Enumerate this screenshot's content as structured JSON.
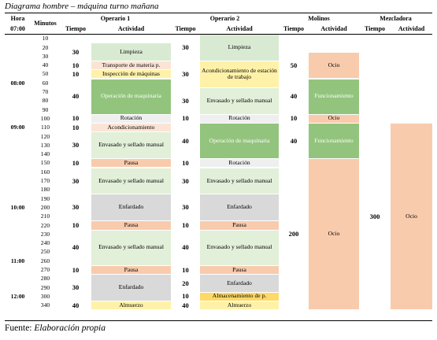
{
  "caption": "Diagrama hombre – máquina turno mañana",
  "source": {
    "label": "Fuente:",
    "value": "Elaboración propia"
  },
  "colors": {
    "limpieza": "#d9ead3",
    "white": "#ffffff",
    "transporte": "#fbe4d5",
    "inspeccion": "#fff2a8",
    "operacion": "#93c47d",
    "rotacion": "#efefef",
    "acondicionamiento": "#fbe4d5",
    "envasado": "#e2efd9",
    "pausa": "#f8cbad",
    "enfardado": "#d9d9d9",
    "almacenamiento": "#ffd966",
    "almuerzo": "#fff2a8",
    "ocio": "#f8cbad",
    "funcionamiento": "#93c47d",
    "header": "#ffffff"
  },
  "headers": {
    "hora": "Hora",
    "hora_start": "07:00",
    "minutos": "Minutos",
    "operario1": "Operario 1",
    "operario2": "Operario 2",
    "molinos": "Molinos",
    "mezcladora": "Mezcladora",
    "tiempo": "Tiempo",
    "actividad": "Actividad"
  },
  "hours": [
    "08:00",
    "09:00",
    "10:00",
    "11:00",
    "12:00"
  ],
  "minutes": [
    "10",
    "20",
    "30",
    "40",
    "50",
    "60",
    "70",
    "80",
    "90",
    "100",
    "110",
    "120",
    "130",
    "140",
    "150",
    "160",
    "170",
    "180",
    "190",
    "200",
    "210",
    "220",
    "230",
    "240",
    "250",
    "260",
    "270",
    "280",
    "290",
    "300",
    "340"
  ],
  "op1": [
    {
      "tiempo": "",
      "actividad": ""
    },
    {
      "tiempo": "30",
      "actividad": "Limpieza"
    },
    {
      "tiempo": "10",
      "actividad": "Transporte de materia p."
    },
    {
      "tiempo": "10",
      "actividad": "Inspección de máquinas"
    },
    {
      "tiempo": "40",
      "actividad": "Operación de maquinaria"
    },
    {
      "tiempo": "10",
      "actividad": "Rotación"
    },
    {
      "tiempo": "10",
      "actividad": "Acondicionamiento"
    },
    {
      "tiempo": "30",
      "actividad": "Envasado y sellado manual"
    },
    {
      "tiempo": "10",
      "actividad": "Pausa"
    },
    {
      "tiempo": "30",
      "actividad": "Envasado y sellado manual"
    },
    {
      "tiempo": "30",
      "actividad": "Enfardado"
    },
    {
      "tiempo": "10",
      "actividad": "Pausa"
    },
    {
      "tiempo": "40",
      "actividad": "Envasado y sellado manual"
    },
    {
      "tiempo": "10",
      "actividad": "Pausa"
    },
    {
      "tiempo": "30",
      "actividad": "Enfardado"
    },
    {
      "tiempo": "40",
      "actividad": "Almuerzo"
    }
  ],
  "op2": [
    {
      "tiempo": "30",
      "actividad": "Limpieza"
    },
    {
      "tiempo": "30",
      "actividad": "Acondicionamiento de estación de trabajo"
    },
    {
      "tiempo": "30",
      "actividad": "Envasado y sellado manual"
    },
    {
      "tiempo": "10",
      "actividad": "Rotación"
    },
    {
      "tiempo": "40",
      "actividad": "Operación de maquinaria"
    },
    {
      "tiempo": "10",
      "actividad": "Rotación"
    },
    {
      "tiempo": "30",
      "actividad": "Envasado y sellado manual"
    },
    {
      "tiempo": "30",
      "actividad": "Enfardado"
    },
    {
      "tiempo": "10",
      "actividad": "Pausa"
    },
    {
      "tiempo": "40",
      "actividad": "Envasado y sellado manual"
    },
    {
      "tiempo": "10",
      "actividad": "Pausa"
    },
    {
      "tiempo": "20",
      "actividad": "Enfardado"
    },
    {
      "tiempo": "10",
      "actividad": "Almacenamiento de p."
    },
    {
      "tiempo": "40",
      "actividad": "Almuerzo"
    }
  ],
  "molinos": [
    {
      "tiempo": "",
      "actividad": ""
    },
    {
      "tiempo": "50",
      "actividad": "Ocio"
    },
    {
      "tiempo": "40",
      "actividad": "Funcionamiento"
    },
    {
      "tiempo": "10",
      "actividad": "Ocio"
    },
    {
      "tiempo": "40",
      "actividad": "Funcionamiento"
    },
    {
      "tiempo": "200",
      "actividad": "Ocio"
    }
  ],
  "mezcladora": [
    {
      "tiempo": "",
      "actividad": ""
    },
    {
      "tiempo": "300",
      "actividad": "Ocio"
    }
  ]
}
